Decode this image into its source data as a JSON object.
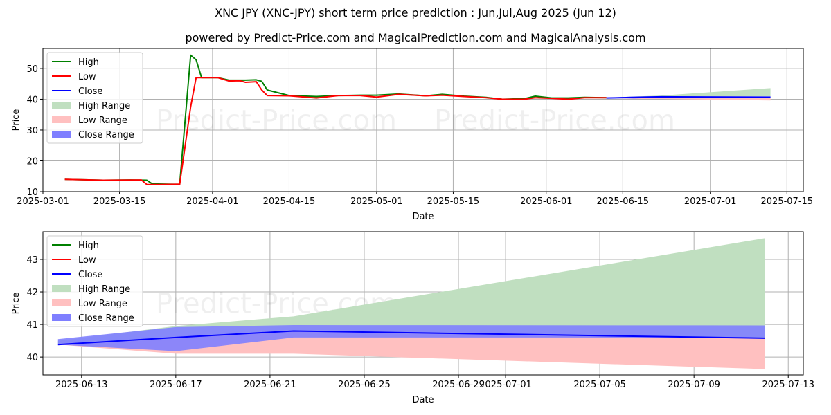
{
  "title": "XNC JPY (XNC-JPY) short term price prediction : Jun,Jul,Aug 2025 (Jun 12)",
  "subtitle": "powered by Predict-Price.com and MagicalPrediction.com and MagicalAnalysis.com",
  "watermark": "Predict-Price.com",
  "colors": {
    "high": "#008000",
    "low": "#ff0000",
    "close": "#0000ff",
    "high_range": "#c0dfc0",
    "low_range": "#ffc0c0",
    "close_range": "#7f7fff"
  },
  "chart_data": [
    {
      "type": "line",
      "panel": "top",
      "xlabel": "Date",
      "ylabel": "Price",
      "xlim": [
        "2025-03-01",
        "2025-07-18"
      ],
      "ylim": [
        10,
        56.5
      ],
      "yticks": [
        10,
        20,
        30,
        40,
        50
      ],
      "xticks": [
        "2025-03-01",
        "2025-03-15",
        "2025-04-01",
        "2025-04-15",
        "2025-05-01",
        "2025-05-15",
        "2025-06-01",
        "2025-06-15",
        "2025-07-01",
        "2025-07-15"
      ],
      "legend": [
        "High",
        "Low",
        "Close",
        "High Range",
        "Low Range",
        "Close Range"
      ],
      "legend_position": "top-left",
      "grid": true,
      "series": [
        {
          "name": "High",
          "color": "#008000",
          "x": [
            "2025-03-05",
            "2025-03-12",
            "2025-03-17",
            "2025-03-20",
            "2025-03-21",
            "2025-03-25",
            "2025-03-26",
            "2025-03-28",
            "2025-03-29",
            "2025-03-30",
            "2025-04-02",
            "2025-04-04",
            "2025-04-07",
            "2025-04-09",
            "2025-04-10",
            "2025-04-11",
            "2025-04-15",
            "2025-04-20",
            "2025-04-24",
            "2025-04-28",
            "2025-05-01",
            "2025-05-05",
            "2025-05-10",
            "2025-05-13",
            "2025-05-17",
            "2025-05-21",
            "2025-05-24",
            "2025-05-28",
            "2025-05-30",
            "2025-06-02",
            "2025-06-05",
            "2025-06-08",
            "2025-06-12"
          ],
          "y": [
            14.0,
            13.7,
            13.8,
            13.7,
            12.5,
            12.4,
            12.4,
            54.3,
            52.8,
            47.0,
            47.0,
            46.2,
            46.2,
            46.3,
            45.8,
            43.0,
            41.2,
            40.9,
            41.2,
            41.3,
            41.3,
            41.7,
            41.1,
            41.6,
            41.0,
            40.6,
            40.0,
            40.2,
            41.0,
            40.4,
            40.4,
            40.6,
            40.5
          ]
        },
        {
          "name": "Low",
          "color": "#ff0000",
          "x": [
            "2025-03-05",
            "2025-03-12",
            "2025-03-19",
            "2025-03-20",
            "2025-03-22",
            "2025-03-26",
            "2025-03-28",
            "2025-03-29",
            "2025-03-30",
            "2025-04-02",
            "2025-04-04",
            "2025-04-06",
            "2025-04-07",
            "2025-04-09",
            "2025-04-10",
            "2025-04-11",
            "2025-04-15",
            "2025-04-20",
            "2025-04-24",
            "2025-04-28",
            "2025-05-01",
            "2025-05-05",
            "2025-05-10",
            "2025-05-13",
            "2025-05-17",
            "2025-05-21",
            "2025-05-24",
            "2025-05-28",
            "2025-05-30",
            "2025-06-02",
            "2025-06-05",
            "2025-06-08",
            "2025-06-12"
          ],
          "y": [
            14.0,
            13.7,
            13.8,
            12.3,
            12.3,
            12.4,
            37.5,
            47.0,
            47.0,
            47.0,
            45.9,
            46.0,
            45.5,
            45.7,
            43.0,
            41.2,
            41.1,
            40.4,
            41.2,
            41.2,
            40.7,
            41.6,
            41.1,
            41.3,
            40.9,
            40.5,
            40.0,
            40.0,
            40.5,
            40.3,
            40.0,
            40.5,
            40.5
          ]
        },
        {
          "name": "Close",
          "color": "#0000ff",
          "x": [
            "2025-06-12",
            "2025-06-17",
            "2025-06-22",
            "2025-07-12"
          ],
          "y": [
            40.4,
            40.6,
            40.8,
            40.6
          ]
        }
      ],
      "bands": [
        {
          "name": "High Range",
          "color": "#c0dfc0",
          "x": [
            "2025-06-12",
            "2025-06-17",
            "2025-06-22",
            "2025-07-12"
          ],
          "upper": [
            40.5,
            40.9,
            41.2,
            43.6
          ],
          "lower": [
            40.4,
            40.6,
            40.8,
            40.6
          ]
        },
        {
          "name": "Low Range",
          "color": "#ffc0c0",
          "x": [
            "2025-06-12",
            "2025-06-17",
            "2025-06-22",
            "2025-07-12"
          ],
          "upper": [
            40.4,
            40.6,
            40.8,
            40.6
          ],
          "lower": [
            40.4,
            40.1,
            40.1,
            39.6
          ]
        },
        {
          "name": "Close Range",
          "color": "#7f7fff",
          "x": [
            "2025-06-12",
            "2025-06-17",
            "2025-06-22",
            "2025-07-12"
          ],
          "upper": [
            40.5,
            40.9,
            41.0,
            41.0
          ],
          "lower": [
            40.4,
            40.2,
            40.6,
            40.6
          ]
        }
      ]
    },
    {
      "type": "line",
      "panel": "bottom",
      "xlabel": "Date",
      "ylabel": "Price",
      "xlim": [
        "2025-06-11.36",
        "2025-07-13.64"
      ],
      "ylim": [
        39.45,
        43.85
      ],
      "yticks": [
        40,
        41,
        42,
        43
      ],
      "xticks": [
        "2025-06-13",
        "2025-06-17",
        "2025-06-21",
        "2025-06-25",
        "2025-06-29",
        "2025-07-01",
        "2025-07-05",
        "2025-07-09",
        "2025-07-13"
      ],
      "legend": [
        "High",
        "Low",
        "Close",
        "High Range",
        "Low Range",
        "Close Range"
      ],
      "legend_position": "top-left",
      "grid": true,
      "series": [
        {
          "name": "Close",
          "color": "#0000ff",
          "x": [
            "2025-06-12",
            "2025-06-17",
            "2025-06-22",
            "2025-07-12"
          ],
          "y": [
            40.38,
            40.6,
            40.8,
            40.58
          ]
        }
      ],
      "bands": [
        {
          "name": "High Range",
          "color": "#c0dfc0",
          "x": [
            "2025-06-12",
            "2025-06-17",
            "2025-06-22",
            "2025-07-12"
          ],
          "upper": [
            40.5,
            40.95,
            41.25,
            43.65
          ],
          "lower": [
            40.38,
            40.6,
            40.8,
            40.58
          ]
        },
        {
          "name": "Low Range",
          "color": "#ffc0c0",
          "x": [
            "2025-06-12",
            "2025-06-17",
            "2025-06-22",
            "2025-07-12"
          ],
          "upper": [
            40.38,
            40.6,
            40.8,
            40.58
          ],
          "lower": [
            40.38,
            40.1,
            40.1,
            39.63
          ]
        },
        {
          "name": "Close Range",
          "color": "#7f7fff",
          "x": [
            "2025-06-12",
            "2025-06-17",
            "2025-06-22",
            "2025-07-12"
          ],
          "upper": [
            40.55,
            40.92,
            40.98,
            40.97
          ],
          "lower": [
            40.38,
            40.18,
            40.6,
            40.6
          ]
        }
      ]
    }
  ]
}
